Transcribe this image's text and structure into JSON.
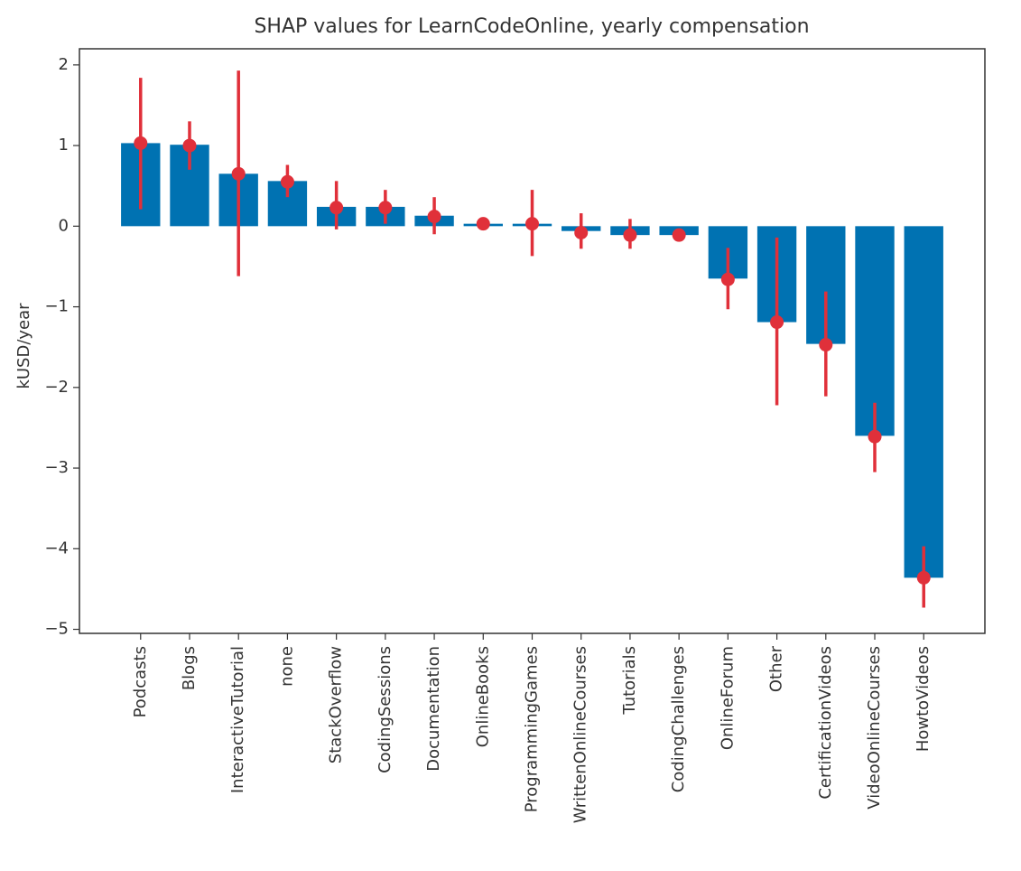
{
  "chart_data": {
    "type": "bar",
    "title": "SHAP values for LearnCodeOnline, yearly compensation",
    "xlabel": "",
    "ylabel": "kUSD/year",
    "ylim": [
      -5.05,
      2.2
    ],
    "yticks": [
      2,
      1,
      0,
      -1,
      -2,
      -3,
      -4,
      -5
    ],
    "ytick_labels": [
      "2",
      "1",
      "0",
      "−1",
      "−2",
      "−3",
      "−4",
      "−5"
    ],
    "grid": false,
    "categories": [
      "Podcasts",
      "Blogs",
      "InteractiveTutorial",
      "none",
      "StackOverflow",
      "CodingSessions",
      "Documentation",
      "OnlineBooks",
      "ProgrammingGames",
      "WrittenOnlineCourses",
      "Tutorials",
      "CodingChallenges",
      "OnlineForum",
      "Other",
      "CertificationVideos",
      "VideoOnlineCourses",
      "HowtoVideos"
    ],
    "values": [
      1.03,
      1.01,
      0.65,
      0.56,
      0.24,
      0.24,
      0.13,
      0.03,
      0.03,
      -0.06,
      -0.11,
      -0.11,
      -0.65,
      -1.19,
      -1.46,
      -2.6,
      -4.36
    ],
    "points": [
      1.03,
      1.0,
      0.65,
      0.55,
      0.23,
      0.23,
      0.12,
      0.03,
      0.03,
      -0.08,
      -0.11,
      -0.11,
      -0.66,
      -1.19,
      -1.47,
      -2.61,
      -4.36
    ],
    "err_low": [
      0.21,
      0.7,
      -0.62,
      0.36,
      -0.04,
      0.03,
      -0.1,
      0.03,
      -0.37,
      -0.28,
      -0.28,
      -0.17,
      -1.03,
      -2.22,
      -2.11,
      -3.05,
      -4.73
    ],
    "err_high": [
      1.84,
      1.3,
      1.93,
      0.76,
      0.56,
      0.45,
      0.36,
      0.03,
      0.45,
      0.16,
      0.09,
      -0.05,
      -0.27,
      -0.14,
      -0.81,
      -2.19,
      -3.97
    ],
    "bar_color": "#0072b2",
    "point_color": "#e0303a"
  }
}
